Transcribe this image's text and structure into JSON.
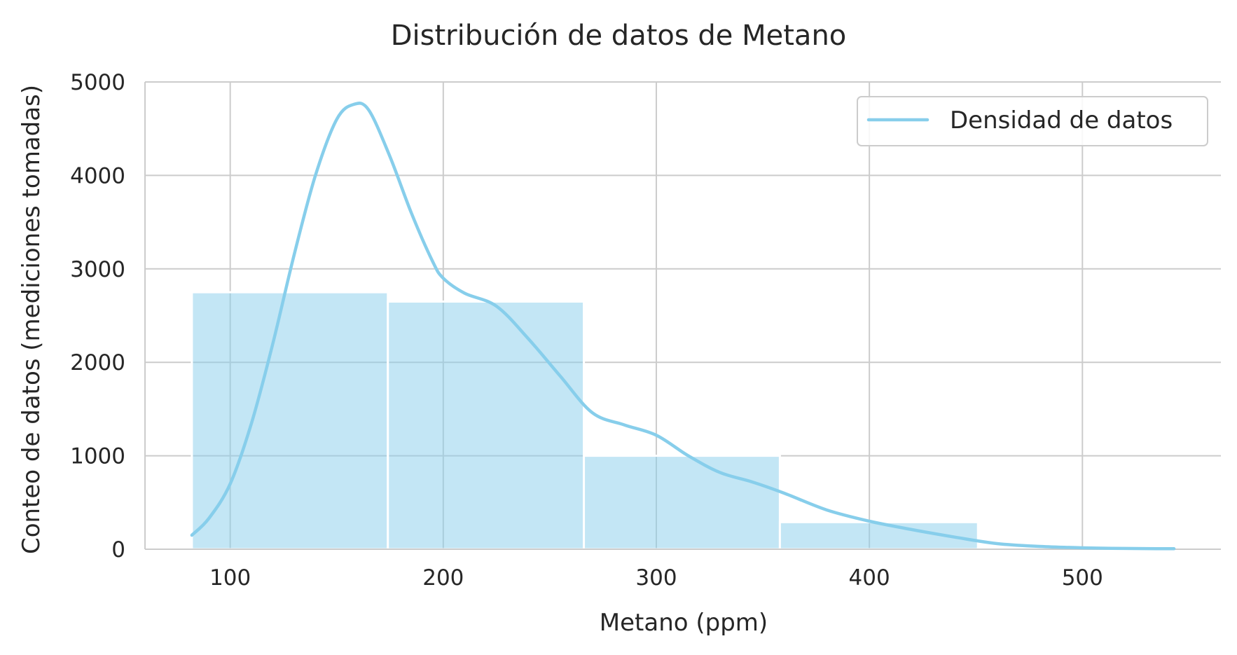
{
  "chart_data": {
    "type": "bar",
    "title": "Distribución de datos de Metano",
    "xlabel": "Metano (ppm)",
    "ylabel": "Conteo de datos (mediciones tomadas)",
    "xlim": [
      60,
      565
    ],
    "ylim": [
      0,
      5000
    ],
    "xticks": [
      100,
      200,
      300,
      400,
      500
    ],
    "yticks": [
      0,
      1000,
      2000,
      3000,
      4000,
      5000
    ],
    "grid": true,
    "legend_position": "top-right",
    "color": "#87ceeb",
    "bins": [
      {
        "start": 82,
        "end": 174,
        "count": 2750
      },
      {
        "start": 174,
        "end": 266,
        "count": 2650
      },
      {
        "start": 266,
        "end": 358,
        "count": 1000
      },
      {
        "start": 358,
        "end": 451,
        "count": 290
      },
      {
        "start": 451,
        "end": 543,
        "count": 10
      }
    ],
    "series": [
      {
        "name": "Densidad de datos",
        "type": "line",
        "x": [
          82,
          90,
          100,
          110,
          120,
          130,
          140,
          150,
          158,
          165,
          175,
          185,
          195,
          200,
          210,
          225,
          240,
          255,
          270,
          285,
          300,
          315,
          330,
          345,
          360,
          380,
          400,
          420,
          440,
          460,
          480,
          500,
          520,
          543
        ],
        "y": [
          150,
          330,
          700,
          1350,
          2200,
          3150,
          4000,
          4600,
          4760,
          4700,
          4200,
          3600,
          3080,
          2900,
          2740,
          2600,
          2250,
          1850,
          1460,
          1330,
          1220,
          1000,
          820,
          720,
          600,
          420,
          300,
          210,
          130,
          60,
          30,
          15,
          8,
          5
        ]
      }
    ]
  }
}
